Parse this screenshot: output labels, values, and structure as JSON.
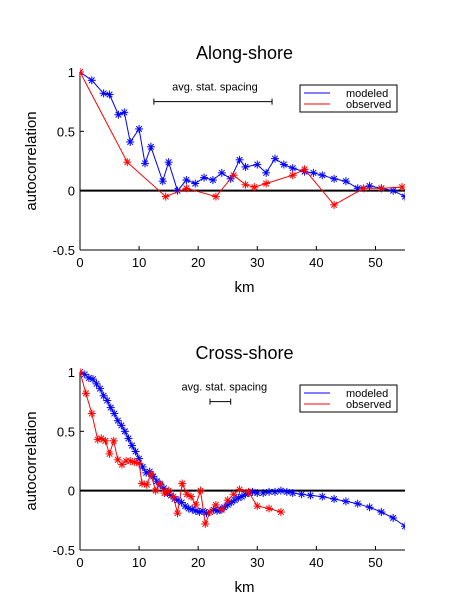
{
  "chart_data": [
    {
      "type": "line",
      "title": "Along-shore",
      "xlabel": "km",
      "ylabel": "autocorrelation",
      "xlim": [
        0,
        55
      ],
      "ylim": [
        -0.5,
        1
      ],
      "xticks": [
        "0",
        "10",
        "20",
        "30",
        "40",
        "50"
      ],
      "yticks": [
        "-0.5",
        "0",
        "0.5",
        "1"
      ],
      "xtick_values": [
        0,
        10,
        20,
        30,
        40,
        50
      ],
      "ytick_values": [
        -0.5,
        0,
        0.5,
        1
      ],
      "grid": false,
      "zero_line": true,
      "legend_position": "top-right",
      "annotation": {
        "text": "avg. stat. spacing",
        "x_start": 12.5,
        "x_end": 32.5,
        "y": 0.75
      },
      "series": [
        {
          "name": "modeled",
          "color": "#0000ff",
          "marker": "asterisk",
          "x": [
            0,
            2,
            4,
            5,
            6.5,
            7.5,
            8.5,
            10,
            11,
            12,
            14,
            15,
            16.5,
            18,
            19.5,
            21,
            22.5,
            24,
            25.5,
            27,
            28,
            30,
            31.5,
            33,
            34.5,
            36,
            38,
            39.5,
            41,
            43,
            45,
            47,
            49,
            51,
            53,
            55
          ],
          "y": [
            1.0,
            0.93,
            0.82,
            0.81,
            0.64,
            0.66,
            0.41,
            0.52,
            0.23,
            0.37,
            0.08,
            0.24,
            0.0,
            0.09,
            0.06,
            0.11,
            0.09,
            0.15,
            0.1,
            0.26,
            0.2,
            0.22,
            0.15,
            0.27,
            0.22,
            0.19,
            0.16,
            0.15,
            0.13,
            0.1,
            0.08,
            0.02,
            0.04,
            0.02,
            0.0,
            -0.05
          ]
        },
        {
          "name": "observed",
          "color": "#ff0000",
          "marker": "asterisk",
          "x": [
            0,
            8,
            14.5,
            18,
            23,
            26,
            28,
            29.5,
            31.5,
            36,
            38,
            43,
            48,
            51,
            54.5
          ],
          "y": [
            1.0,
            0.24,
            -0.05,
            0.02,
            -0.05,
            0.13,
            0.05,
            0.03,
            0.06,
            0.13,
            0.18,
            -0.12,
            0.02,
            0.02,
            0.03
          ]
        }
      ]
    },
    {
      "type": "line",
      "title": "Cross-shore",
      "xlabel": "km",
      "ylabel": "autocorrelation",
      "xlim": [
        0,
        55
      ],
      "ylim": [
        -0.5,
        1
      ],
      "xticks": [
        "0",
        "10",
        "20",
        "30",
        "40",
        "50"
      ],
      "yticks": [
        "-0.5",
        "0",
        "0.5",
        "1"
      ],
      "xtick_values": [
        0,
        10,
        20,
        30,
        40,
        50
      ],
      "ytick_values": [
        -0.5,
        0,
        0.5,
        1
      ],
      "grid": false,
      "zero_line": true,
      "legend_position": "top-right",
      "annotation": {
        "text": "avg. stat. spacing",
        "x_start": 22,
        "x_end": 25.5,
        "y": 0.75
      },
      "series": [
        {
          "name": "modeled",
          "color": "#0000ff",
          "marker": "asterisk",
          "x": [
            0,
            0.8,
            1.5,
            2.2,
            2.8,
            3.4,
            4,
            4.6,
            5.2,
            5.8,
            6.4,
            7,
            7.6,
            8.2,
            8.8,
            9.4,
            10,
            10.6,
            11.2,
            11.8,
            12.4,
            13,
            13.6,
            14.2,
            14.8,
            15.4,
            16,
            16.6,
            17.2,
            17.8,
            18.4,
            19,
            19.6,
            20.2,
            20.8,
            21.4,
            22,
            22.6,
            23.2,
            23.8,
            24.4,
            25,
            25.6,
            26.2,
            26.8,
            27.4,
            28,
            28.6,
            29.2,
            30,
            31,
            32,
            33,
            34,
            35,
            36,
            37.5,
            39,
            41,
            43,
            45,
            47,
            49,
            51,
            53,
            55
          ],
          "y": [
            1.0,
            0.98,
            0.95,
            0.94,
            0.9,
            0.86,
            0.8,
            0.76,
            0.7,
            0.65,
            0.59,
            0.55,
            0.5,
            0.44,
            0.38,
            0.33,
            0.27,
            0.2,
            0.15,
            0.16,
            0.12,
            0.08,
            0.05,
            0.02,
            -0.02,
            -0.04,
            -0.07,
            -0.08,
            -0.1,
            -0.13,
            -0.15,
            -0.16,
            -0.17,
            -0.18,
            -0.17,
            -0.19,
            -0.18,
            -0.16,
            -0.17,
            -0.16,
            -0.14,
            -0.12,
            -0.1,
            -0.08,
            -0.06,
            -0.05,
            -0.03,
            -0.02,
            -0.01,
            -0.02,
            -0.02,
            -0.01,
            -0.01,
            0.0,
            -0.01,
            -0.02,
            -0.03,
            -0.04,
            -0.05,
            -0.07,
            -0.09,
            -0.11,
            -0.14,
            -0.18,
            -0.23,
            -0.3
          ]
        },
        {
          "name": "observed",
          "color": "#ff0000",
          "marker": "asterisk",
          "x": [
            0,
            1,
            2,
            3,
            3.6,
            4.3,
            5,
            5.7,
            6.4,
            7.1,
            7.8,
            8.5,
            9.2,
            10,
            10.5,
            11.3,
            12,
            12.8,
            13.5,
            14.3,
            15,
            15.8,
            16.5,
            17.3,
            18.1,
            18.8,
            19.6,
            20.4,
            21.2,
            22,
            23,
            24,
            25,
            26,
            27,
            28.5,
            30,
            32,
            34
          ],
          "y": [
            1.0,
            0.82,
            0.65,
            0.43,
            0.44,
            0.42,
            0.31,
            0.42,
            0.26,
            0.22,
            0.25,
            0.25,
            0.24,
            0.23,
            0.06,
            0.05,
            0.14,
            0.0,
            0.06,
            -0.02,
            0.0,
            -0.05,
            -0.19,
            0.06,
            -0.03,
            -0.05,
            -0.12,
            0.0,
            -0.28,
            -0.18,
            -0.12,
            -0.16,
            -0.08,
            -0.03,
            0.01,
            -0.01,
            -0.13,
            -0.15,
            -0.18
          ]
        }
      ]
    }
  ]
}
